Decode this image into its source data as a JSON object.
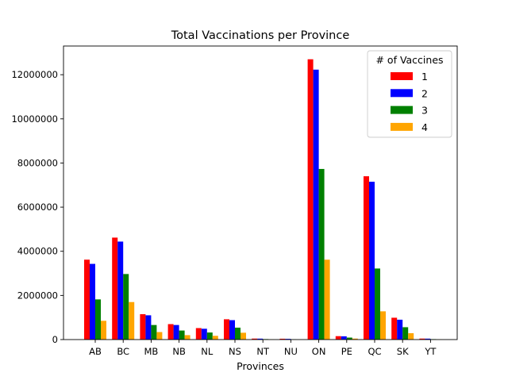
{
  "chart_data": {
    "type": "bar",
    "title": "Total Vaccinations per Province",
    "xlabel": "Provinces",
    "ylabel": "",
    "categories": [
      "AB",
      "BC",
      "MB",
      "NB",
      "NL",
      "NS",
      "NT",
      "NU",
      "ON",
      "PE",
      "QC",
      "SK",
      "YT"
    ],
    "series": [
      {
        "name": "1",
        "color": "#ff0000",
        "values": [
          3620000,
          4620000,
          1150000,
          700000,
          520000,
          920000,
          45000,
          38000,
          12700000,
          155000,
          7400000,
          990000,
          45000
        ]
      },
      {
        "name": "2",
        "color": "#0000ff",
        "values": [
          3430000,
          4440000,
          1100000,
          660000,
          490000,
          880000,
          42000,
          33000,
          12230000,
          148000,
          7150000,
          900000,
          42000
        ]
      },
      {
        "name": "3",
        "color": "#008000",
        "values": [
          1820000,
          2970000,
          660000,
          410000,
          320000,
          540000,
          22000,
          15000,
          7730000,
          90000,
          3220000,
          560000,
          20000
        ]
      },
      {
        "name": "4",
        "color": "#ffa500",
        "values": [
          850000,
          1700000,
          340000,
          200000,
          170000,
          310000,
          8000,
          5000,
          3620000,
          45000,
          1280000,
          290000,
          8000
        ]
      }
    ],
    "yticks": [
      0,
      2000000,
      4000000,
      6000000,
      8000000,
      10000000,
      12000000
    ],
    "ytick_labels": [
      "0",
      "2000000",
      "4000000",
      "6000000",
      "8000000",
      "10000000",
      "12000000"
    ],
    "ylim": [
      0,
      13300000
    ],
    "legend": {
      "title": "# of Vaccines",
      "position": "top-right"
    },
    "grid": false
  }
}
